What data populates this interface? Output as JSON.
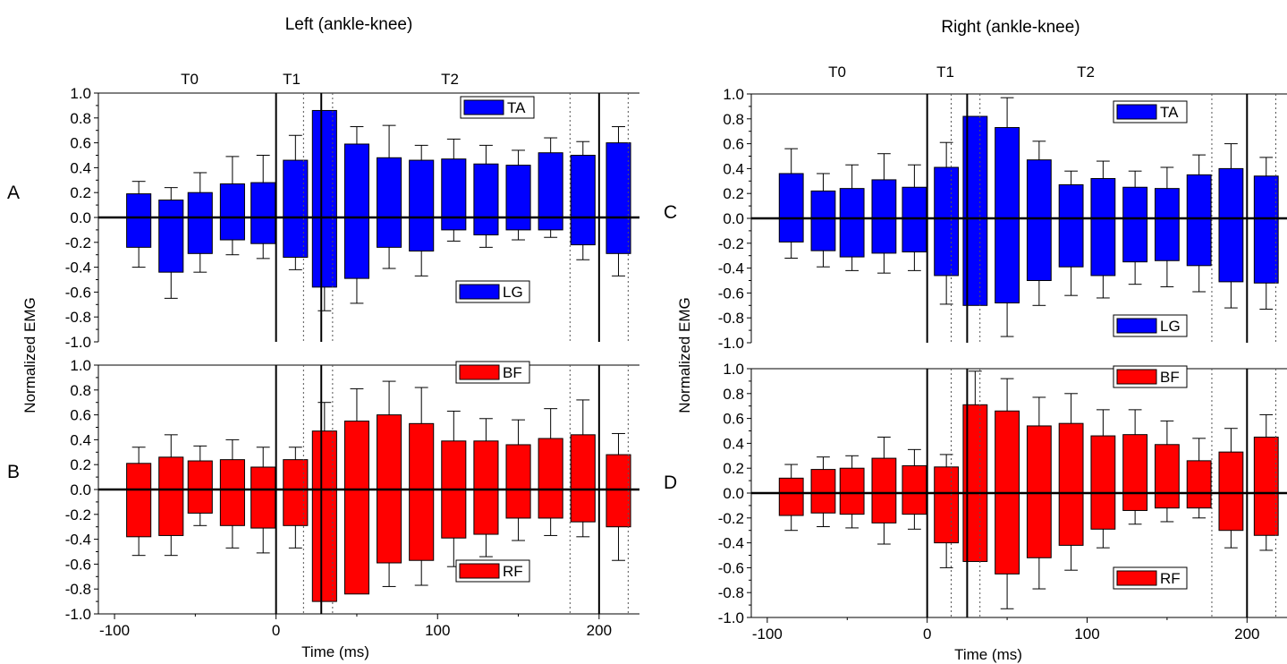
{
  "colors": {
    "flexor_bar": "#0000ff",
    "extensor_bar": "#ff0000",
    "axis": "#000000",
    "bar_outline": "#000000"
  },
  "panels": [
    {
      "key": "left",
      "title": "Left (ankle-knee)",
      "panel_letters": [
        "A",
        "B"
      ],
      "ylabel": "Normalized EMG",
      "xlabel": "Time (ms)",
      "phase_labels": [
        "T0",
        "T1",
        "T2"
      ]
    },
    {
      "key": "right",
      "title": "Right (ankle-knee)",
      "panel_letters": [
        "C",
        "D"
      ],
      "ylabel": "Normalized EMG",
      "xlabel": "Time (ms)",
      "phase_labels": [
        "T0",
        "T1",
        "T2"
      ]
    }
  ],
  "chart_data": [
    {
      "type": "bar",
      "title": "Left (ankle-knee)",
      "panel": "A",
      "xlabel": "",
      "ylabel": "Normalized EMG",
      "xlim": [
        -110,
        225
      ],
      "ylim": [
        -1.0,
        1.0
      ],
      "xticks": [],
      "yticks": [
        -1.0,
        -0.8,
        -0.6,
        -0.4,
        -0.2,
        0.0,
        0.2,
        0.4,
        0.6,
        0.8,
        1.0
      ],
      "x": [
        -85,
        -65,
        -47,
        -27,
        -8,
        12,
        30,
        50,
        70,
        90,
        110,
        130,
        150,
        170,
        190,
        212
      ],
      "series": [
        {
          "name": "TA",
          "color": "#0000ff",
          "direction": "up",
          "values": [
            0.19,
            0.14,
            0.2,
            0.27,
            0.28,
            0.46,
            0.86,
            0.59,
            0.48,
            0.46,
            0.47,
            0.43,
            0.42,
            0.52,
            0.5,
            0.6
          ],
          "errors": [
            0.1,
            0.1,
            0.16,
            0.22,
            0.22,
            0.2,
            0.0,
            0.14,
            0.26,
            0.12,
            0.16,
            0.15,
            0.12,
            0.12,
            0.11,
            0.13
          ]
        },
        {
          "name": "LG",
          "color": "#0000ff",
          "direction": "down",
          "values": [
            -0.24,
            -0.44,
            -0.29,
            -0.18,
            -0.21,
            -0.32,
            -0.56,
            -0.49,
            -0.24,
            -0.27,
            -0.1,
            -0.14,
            -0.1,
            -0.1,
            -0.22,
            -0.29
          ],
          "errors": [
            0.16,
            0.21,
            0.15,
            0.12,
            0.12,
            0.1,
            0.19,
            0.2,
            0.17,
            0.2,
            0.09,
            0.1,
            0.08,
            0.06,
            0.12,
            0.18
          ]
        }
      ],
      "legend": [
        "TA",
        "LG"
      ],
      "vlines_solid": [
        0,
        28,
        200
      ],
      "vlines_dotted": [
        17,
        35,
        182,
        218
      ],
      "phase_labels": [
        "T0",
        "T1",
        "T2"
      ]
    },
    {
      "type": "bar",
      "panel": "B",
      "xlabel": "Time (ms)",
      "ylabel": "Normalized EMG",
      "xlim": [
        -110,
        225
      ],
      "ylim": [
        -1.0,
        1.0
      ],
      "xticks": [
        -100,
        0,
        100,
        200
      ],
      "yticks": [
        -1.0,
        -0.8,
        -0.6,
        -0.4,
        -0.2,
        0.0,
        0.2,
        0.4,
        0.6,
        0.8,
        1.0
      ],
      "x": [
        -85,
        -65,
        -47,
        -27,
        -8,
        12,
        30,
        50,
        70,
        90,
        110,
        130,
        150,
        170,
        190,
        212
      ],
      "series": [
        {
          "name": "BF",
          "color": "#ff0000",
          "direction": "up",
          "values": [
            0.21,
            0.26,
            0.23,
            0.24,
            0.18,
            0.24,
            0.47,
            0.55,
            0.6,
            0.53,
            0.39,
            0.39,
            0.36,
            0.41,
            0.44,
            0.28
          ],
          "errors": [
            0.13,
            0.18,
            0.12,
            0.16,
            0.16,
            0.1,
            0.23,
            0.26,
            0.27,
            0.29,
            0.24,
            0.18,
            0.2,
            0.24,
            0.28,
            0.17
          ]
        },
        {
          "name": "RF",
          "color": "#ff0000",
          "direction": "down",
          "values": [
            -0.38,
            -0.37,
            -0.19,
            -0.29,
            -0.31,
            -0.29,
            -0.9,
            -0.84,
            -0.59,
            -0.57,
            -0.39,
            -0.36,
            -0.23,
            -0.23,
            -0.26,
            -0.3
          ],
          "errors": [
            0.15,
            0.16,
            0.1,
            0.18,
            0.2,
            0.18,
            0.0,
            0.0,
            0.19,
            0.2,
            0.23,
            0.18,
            0.18,
            0.14,
            0.12,
            0.27
          ]
        }
      ],
      "legend": [
        "BF",
        "RF"
      ],
      "vlines_solid": [
        0,
        28,
        200
      ],
      "vlines_dotted": [
        17,
        35,
        182,
        218
      ]
    },
    {
      "type": "bar",
      "title": "Right (ankle-knee)",
      "panel": "C",
      "xlabel": "",
      "ylabel": "Normalized EMG",
      "xlim": [
        -110,
        225
      ],
      "ylim": [
        -1.0,
        1.0
      ],
      "xticks": [],
      "yticks": [
        -1.0,
        -0.8,
        -0.6,
        -0.4,
        -0.2,
        0.0,
        0.2,
        0.4,
        0.6,
        0.8,
        1.0
      ],
      "x": [
        -85,
        -65,
        -47,
        -27,
        -8,
        12,
        30,
        50,
        70,
        90,
        110,
        130,
        150,
        170,
        190,
        212
      ],
      "series": [
        {
          "name": "TA",
          "color": "#0000ff",
          "direction": "up",
          "values": [
            0.36,
            0.22,
            0.24,
            0.31,
            0.25,
            0.41,
            0.82,
            0.73,
            0.47,
            0.27,
            0.32,
            0.25,
            0.24,
            0.35,
            0.4,
            0.34
          ],
          "errors": [
            0.2,
            0.14,
            0.19,
            0.21,
            0.18,
            0.2,
            0.0,
            0.24,
            0.15,
            0.11,
            0.14,
            0.13,
            0.17,
            0.16,
            0.2,
            0.15
          ]
        },
        {
          "name": "LG",
          "color": "#0000ff",
          "direction": "down",
          "values": [
            -0.19,
            -0.26,
            -0.31,
            -0.28,
            -0.27,
            -0.46,
            -0.7,
            -0.68,
            -0.5,
            -0.39,
            -0.46,
            -0.35,
            -0.34,
            -0.38,
            -0.51,
            -0.52
          ],
          "errors": [
            0.13,
            0.13,
            0.11,
            0.16,
            0.15,
            0.23,
            0.0,
            0.27,
            0.2,
            0.23,
            0.18,
            0.18,
            0.21,
            0.21,
            0.21,
            0.21
          ]
        }
      ],
      "legend": [
        "TA",
        "LG"
      ],
      "vlines_solid": [
        0,
        25,
        200
      ],
      "vlines_dotted": [
        15,
        33,
        178,
        218
      ],
      "phase_labels": [
        "T0",
        "T1",
        "T2"
      ]
    },
    {
      "type": "bar",
      "panel": "D",
      "xlabel": "Time (ms)",
      "ylabel": "Normalized EMG",
      "xlim": [
        -110,
        225
      ],
      "ylim": [
        -1.0,
        1.0
      ],
      "xticks": [
        -100,
        0,
        100,
        200
      ],
      "yticks": [
        -1.0,
        -0.8,
        -0.6,
        -0.4,
        -0.2,
        0.0,
        0.2,
        0.4,
        0.6,
        0.8,
        1.0
      ],
      "x": [
        -85,
        -65,
        -47,
        -27,
        -8,
        12,
        30,
        50,
        70,
        90,
        110,
        130,
        150,
        170,
        190,
        212
      ],
      "series": [
        {
          "name": "BF",
          "color": "#ff0000",
          "direction": "up",
          "values": [
            0.12,
            0.19,
            0.2,
            0.28,
            0.22,
            0.21,
            0.71,
            0.66,
            0.54,
            0.56,
            0.46,
            0.47,
            0.39,
            0.26,
            0.33,
            0.45
          ],
          "errors": [
            0.11,
            0.1,
            0.1,
            0.17,
            0.13,
            0.1,
            0.27,
            0.26,
            0.23,
            0.24,
            0.21,
            0.2,
            0.19,
            0.18,
            0.19,
            0.18
          ]
        },
        {
          "name": "RF",
          "color": "#ff0000",
          "direction": "down",
          "values": [
            -0.18,
            -0.16,
            -0.17,
            -0.24,
            -0.17,
            -0.4,
            -0.55,
            -0.65,
            -0.52,
            -0.42,
            -0.29,
            -0.14,
            -0.12,
            -0.12,
            -0.3,
            -0.34
          ],
          "errors": [
            0.12,
            0.11,
            0.11,
            0.17,
            0.12,
            0.2,
            0.0,
            0.28,
            0.25,
            0.2,
            0.15,
            0.11,
            0.11,
            0.08,
            0.14,
            0.12
          ]
        }
      ],
      "legend": [
        "BF",
        "RF"
      ],
      "vlines_solid": [
        0,
        25,
        200
      ],
      "vlines_dotted": [
        15,
        33,
        178,
        218
      ]
    }
  ]
}
